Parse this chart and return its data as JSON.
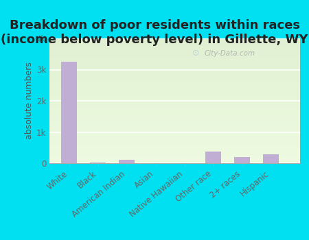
{
  "title": "Breakdown of poor residents within races\n(income below poverty level) in Gillette, WY",
  "categories": [
    "White",
    "Black",
    "American Indian",
    "Asian",
    "Native Hawaiian",
    "Other race",
    "2+ races",
    "Hispanic"
  ],
  "values": [
    3250,
    18,
    110,
    5,
    5,
    370,
    190,
    290
  ],
  "bar_color": "#c0aed4",
  "ylabel": "absolute numbers",
  "ylim": [
    0,
    4000
  ],
  "yticks": [
    0,
    1000,
    2000,
    3000,
    4000
  ],
  "ytick_labels": [
    "0",
    "1k",
    "2k",
    "3k",
    "4k"
  ],
  "plot_bg_top": "#e8f5e0",
  "plot_bg_bottom": "#c8e8c0",
  "outer_background": "#00e0f0",
  "title_fontsize": 13,
  "ylabel_fontsize": 9,
  "tick_fontsize": 8.5,
  "watermark": "City-Data.com"
}
